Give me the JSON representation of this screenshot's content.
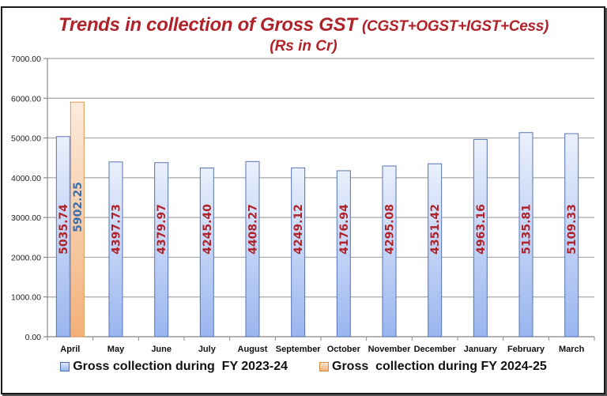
{
  "chart_data": {
    "type": "bar",
    "title": "Trends in collection of Gross GST (CGST+OGST+IGST+Cess)",
    "subtitle": "(Rs in Cr)",
    "xlabel": "",
    "ylabel": "",
    "ylim": [
      0,
      7000
    ],
    "yticks": [
      "0.00",
      "1000.00",
      "2000.00",
      "3000.00",
      "4000.00",
      "5000.00",
      "6000.00",
      "7000.00"
    ],
    "grid": true,
    "legend_position": "bottom",
    "categories": [
      "April",
      "May",
      "June",
      "July",
      "August",
      "September",
      "October",
      "November",
      "December",
      "January",
      "February",
      "March"
    ],
    "series": [
      {
        "name": "Gross collection during  FY 2023-24",
        "color": "#a9c2f2",
        "label_color": "#b0232a",
        "values": [
          5035.74,
          4397.73,
          4379.97,
          4245.4,
          4408.27,
          4249.12,
          4176.94,
          4295.08,
          4351.42,
          4963.16,
          5135.81,
          5109.33
        ],
        "labels": [
          "5035.74",
          "4397.73",
          "4379.97",
          "4245.40",
          "4408.27",
          "4249.12",
          "4176.94",
          "4295.08",
          "4351.42",
          "4963.16",
          "5135.81",
          "5109.33"
        ]
      },
      {
        "name": "Gross  collection during FY 2024-25",
        "color": "#f5bb86",
        "label_color": "#3a6fb0",
        "values": [
          5902.25,
          null,
          null,
          null,
          null,
          null,
          null,
          null,
          null,
          null,
          null,
          null
        ],
        "labels": [
          "5902.25",
          "",
          "",
          "",
          "",
          "",
          "",
          "",
          "",
          "",
          "",
          ""
        ]
      }
    ]
  },
  "title": {
    "main": "Trends in collection of Gross GST ",
    "components": "(CGST+OGST+IGST+Cess)",
    "unit": "(Rs in Cr)"
  },
  "legend": {
    "fy2324": "Gross collection during  FY 2023-24",
    "fy2425": "Gross  collection during FY 2024-25"
  }
}
